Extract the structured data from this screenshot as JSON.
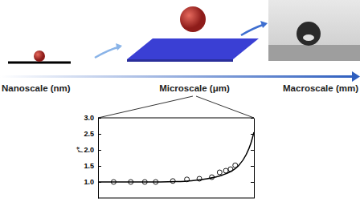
{
  "scale_bar": {
    "labels": [
      "Nanoscale (nm)",
      "Microscale (μm)",
      "Macroscale (mm)"
    ]
  },
  "chart_data": {
    "type": "scatter",
    "y_label": "r*",
    "xlim": [
      0,
      10
    ],
    "ylim": [
      0.5,
      3.0
    ],
    "yticks": [
      {
        "value": 1,
        "label": "1.0"
      },
      {
        "value": 1.5,
        "label": "1.5"
      },
      {
        "value": 2,
        "label": "2.0"
      },
      {
        "value": 2.5,
        "label": "2.5"
      },
      {
        "value": 3,
        "label": "3.0"
      }
    ],
    "tick_labels": "y",
    "grid": false,
    "series": [
      {
        "type": "scatter",
        "marker": "circle",
        "color": "#000000",
        "x": [
          1.0,
          2.1,
          3.0,
          3.7,
          4.8,
          5.7,
          6.5,
          7.3,
          7.8,
          8.2,
          8.5,
          8.8
        ],
        "values": [
          1.0,
          1.0,
          1.0,
          1.0,
          1.03,
          1.08,
          1.1,
          1.15,
          1.3,
          1.35,
          1.4,
          1.52
        ]
      },
      {
        "type": "line",
        "line_style": "solid",
        "color": "#000000",
        "x": [
          0,
          2,
          4,
          5,
          6,
          7,
          8,
          8.5,
          9,
          9.5,
          9.8,
          10
        ],
        "values": [
          1.0,
          1.0,
          1.0,
          1.01,
          1.04,
          1.1,
          1.22,
          1.32,
          1.5,
          1.85,
          2.2,
          2.55
        ]
      }
    ]
  }
}
